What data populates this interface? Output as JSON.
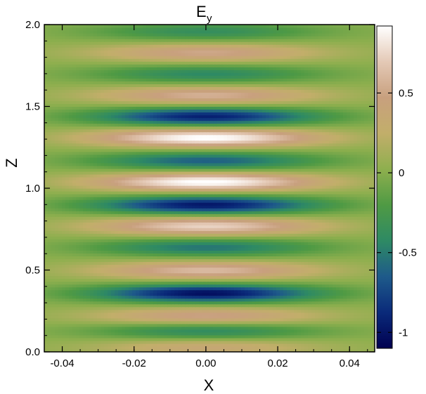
{
  "chart_data": {
    "type": "heatmap",
    "title": "E",
    "title_subscript": "y",
    "xlabel": "X",
    "ylabel": "Z",
    "xlim": [
      -0.045,
      0.047
    ],
    "ylim": [
      0.0,
      2.0
    ],
    "x_ticks": [
      -0.04,
      -0.02,
      0.0,
      0.02,
      0.04
    ],
    "x_tick_labels": [
      "-0.04",
      "-0.02",
      "0.00",
      "0.02",
      "0.04"
    ],
    "y_ticks": [
      0.0,
      0.5,
      1.0,
      1.5,
      2.0
    ],
    "y_tick_labels": [
      "0.0",
      "0.5",
      "1.0",
      "1.5",
      "2.0"
    ],
    "colorbar": {
      "range": [
        -1.1,
        0.92
      ],
      "ticks": [
        -1.0,
        -0.5,
        0.0,
        0.5
      ],
      "tick_labels": [
        "-1",
        "-0.5",
        "0",
        "0.5"
      ],
      "colormap": [
        "#000050",
        "#0a2a7a",
        "#1e5a8a",
        "#2e8a64",
        "#4f9a44",
        "#8eaf4e",
        "#c2ae6a",
        "#c8a07e",
        "#e4c9b6",
        "#ffffff"
      ]
    },
    "bands": [
      {
        "z": 0.03,
        "value": 0.35
      },
      {
        "z": 0.13,
        "value": -0.45
      },
      {
        "z": 0.22,
        "value": 0.5
      },
      {
        "z": 0.36,
        "value": -1.05
      },
      {
        "z": 0.5,
        "value": 0.6
      },
      {
        "z": 0.64,
        "value": -0.55
      },
      {
        "z": 0.77,
        "value": 0.72
      },
      {
        "z": 0.9,
        "value": -1.0
      },
      {
        "z": 1.04,
        "value": 0.92
      },
      {
        "z": 1.17,
        "value": -0.65
      },
      {
        "z": 1.31,
        "value": 0.92
      },
      {
        "z": 1.44,
        "value": -0.95
      },
      {
        "z": 1.57,
        "value": 0.55
      },
      {
        "z": 1.7,
        "value": -0.45
      },
      {
        "z": 1.83,
        "value": 0.5
      },
      {
        "z": 1.96,
        "value": -0.4
      }
    ],
    "x_gaussian_width": 0.022,
    "background_value": 0.02
  }
}
